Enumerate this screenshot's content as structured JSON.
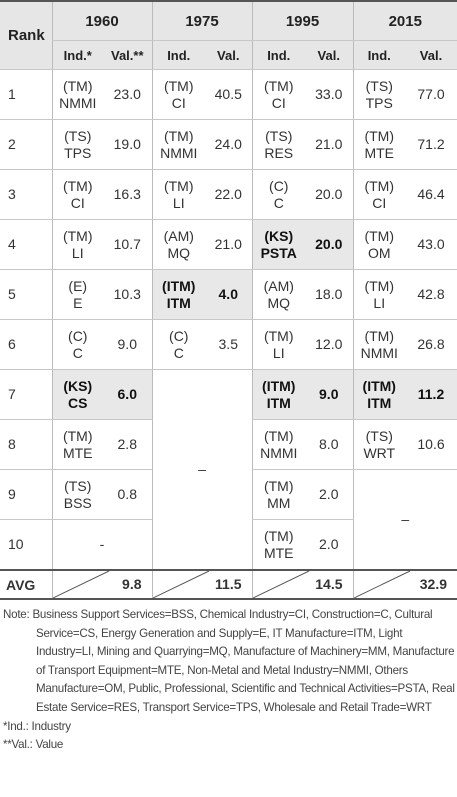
{
  "table": {
    "rank_header": "Rank",
    "years": [
      "1960",
      "1975",
      "1995",
      "2015"
    ],
    "subheaders": [
      [
        "Ind.*",
        "Val.**"
      ],
      [
        "Ind.",
        "Val."
      ],
      [
        "Ind.",
        "Val."
      ],
      [
        "Ind.",
        "Val."
      ]
    ],
    "rows": [
      {
        "rank": "1",
        "cells": [
          {
            "ind": [
              "(TM)",
              "NMMI"
            ],
            "val": "23.0"
          },
          {
            "ind": [
              "(TM)",
              "CI"
            ],
            "val": "40.5"
          },
          {
            "ind": [
              "(TM)",
              "CI"
            ],
            "val": "33.0"
          },
          {
            "ind": [
              "(TS)",
              "TPS"
            ],
            "val": "77.0"
          }
        ]
      },
      {
        "rank": "2",
        "cells": [
          {
            "ind": [
              "(TS)",
              "TPS"
            ],
            "val": "19.0"
          },
          {
            "ind": [
              "(TM)",
              "NMMI"
            ],
            "val": "24.0"
          },
          {
            "ind": [
              "(TS)",
              "RES"
            ],
            "val": "21.0"
          },
          {
            "ind": [
              "(TM)",
              "MTE"
            ],
            "val": "71.2"
          }
        ]
      },
      {
        "rank": "3",
        "cells": [
          {
            "ind": [
              "(TM)",
              "CI"
            ],
            "val": "16.3"
          },
          {
            "ind": [
              "(TM)",
              "LI"
            ],
            "val": "22.0"
          },
          {
            "ind": [
              "(C)",
              "C"
            ],
            "val": "20.0"
          },
          {
            "ind": [
              "(TM)",
              "CI"
            ],
            "val": "46.4"
          }
        ]
      },
      {
        "rank": "4",
        "cells": [
          {
            "ind": [
              "(TM)",
              "LI"
            ],
            "val": "10.7"
          },
          {
            "ind": [
              "(AM)",
              "MQ"
            ],
            "val": "21.0"
          },
          {
            "ind": [
              "(KS)",
              "PSTA"
            ],
            "val": "20.0",
            "highlight": true
          },
          {
            "ind": [
              "(TM)",
              "OM"
            ],
            "val": "43.0"
          }
        ]
      },
      {
        "rank": "5",
        "cells": [
          {
            "ind": [
              "(E)",
              "E"
            ],
            "val": "10.3"
          },
          {
            "ind": [
              "(ITM)",
              "ITM"
            ],
            "val": "4.0",
            "highlight": true
          },
          {
            "ind": [
              "(AM)",
              "MQ"
            ],
            "val": "18.0"
          },
          {
            "ind": [
              "(TM)",
              "LI"
            ],
            "val": "42.8"
          }
        ]
      },
      {
        "rank": "6",
        "cells": [
          {
            "ind": [
              "(C)",
              "C"
            ],
            "val": "9.0"
          },
          {
            "ind": [
              "(C)",
              "C"
            ],
            "val": "3.5"
          },
          {
            "ind": [
              "(TM)",
              "LI"
            ],
            "val": "12.0"
          },
          {
            "ind": [
              "(TM)",
              "NMMI"
            ],
            "val": "26.8"
          }
        ]
      },
      {
        "rank": "7",
        "cells": [
          {
            "ind": [
              "(KS)",
              "CS"
            ],
            "val": "6.0",
            "highlight": true
          },
          {
            "text": "–"
          },
          {
            "ind": [
              "(ITM)",
              "ITM"
            ],
            "val": "9.0",
            "highlight": true
          },
          {
            "ind": [
              "(ITM)",
              "ITM"
            ],
            "val": "11.2",
            "highlight": true
          }
        ]
      },
      {
        "rank": "8",
        "cells": [
          {
            "ind": [
              "(TM)",
              "MTE"
            ],
            "val": "2.8"
          },
          null,
          {
            "ind": [
              "(TM)",
              "NMMI"
            ],
            "val": "8.0"
          },
          {
            "ind": [
              "(TS)",
              "WRT"
            ],
            "val": "10.6"
          }
        ]
      },
      {
        "rank": "9",
        "cells": [
          {
            "ind": [
              "(TS)",
              "BSS"
            ],
            "val": "0.8"
          },
          null,
          {
            "ind": [
              "(TM)",
              "MM"
            ],
            "val": "2.0"
          },
          {
            "text": "–"
          }
        ]
      },
      {
        "rank": "10",
        "cells": [
          {
            "text": "-"
          },
          null,
          {
            "ind": [
              "(TM)",
              "MTE"
            ],
            "val": "2.0"
          },
          null
        ]
      }
    ],
    "avg": {
      "label": "AVG",
      "values": [
        "9.8",
        "11.5",
        "14.5",
        "32.9"
      ]
    }
  },
  "note": {
    "label": "Note:",
    "text": "Business Support Services=BSS, Chemical Industry=CI, Construction=C, Cultural Service=CS, Energy Generation and Supply=E, IT Manufacture=ITM, Light Industry=LI, Mining and Quarrying=MQ, Manufacture of Machinery=MM, Manufacture of Transport Equipment=MTE, Non-Metal and Metal Industry=NMMI, Others Manufacture=OM, Public, Professional, Scientific and Technical Activities=PSTA, Real Estate Service=RES, Transport Service=TPS, Wholesale and Retail Trade=WRT"
  },
  "footnotes": [
    "*Ind.: Industry",
    "**Val.: Value"
  ]
}
